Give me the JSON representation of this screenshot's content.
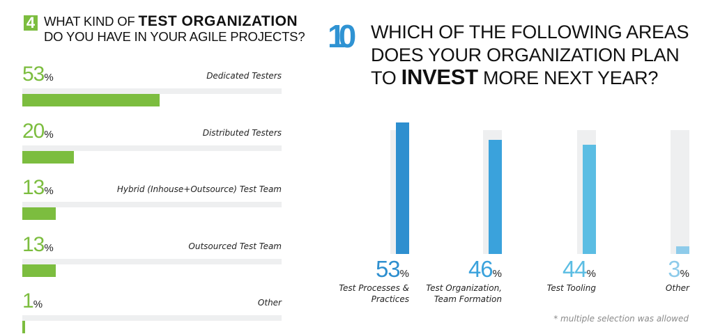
{
  "chart_data": [
    {
      "type": "bar",
      "orientation": "horizontal",
      "question_number": "4",
      "title_pre": "WHAT KIND OF",
      "title_bold": "TEST ORGANIZATION",
      "title_post": "DO YOU HAVE IN YOUR AGILE PROJECTS?",
      "percent_sign": "%",
      "categories": [
        "Dedicated Testers",
        "Distributed Testers",
        "Hybrid (Inhouse+Outsource) Test Team",
        "Outsourced Test Team",
        "Other"
      ],
      "values": [
        53,
        20,
        13,
        13,
        1
      ],
      "xlim": [
        0,
        100
      ],
      "color": "#7cbd3f"
    },
    {
      "type": "bar",
      "orientation": "vertical",
      "question_number": "10",
      "title_line1": "WHICH OF THE FOLLOWING AREAS",
      "title_line2": "DOES YOUR ORGANIZATION PLAN",
      "title_pre3": "TO",
      "title_bold": "INVEST",
      "title_post3": "MORE NEXT YEAR?",
      "percent_sign": "%",
      "categories": [
        [
          "Test Processes &",
          "Practices"
        ],
        [
          "Test Organization,",
          "Team Formation"
        ],
        [
          "Test Tooling"
        ],
        [
          "Other"
        ]
      ],
      "values": [
        53,
        46,
        44,
        3
      ],
      "colors": [
        "#2e8fcf",
        "#3aa2dc",
        "#5bbde3",
        "#8ecbea"
      ],
      "footnote": "* multiple selection was allowed"
    }
  ]
}
